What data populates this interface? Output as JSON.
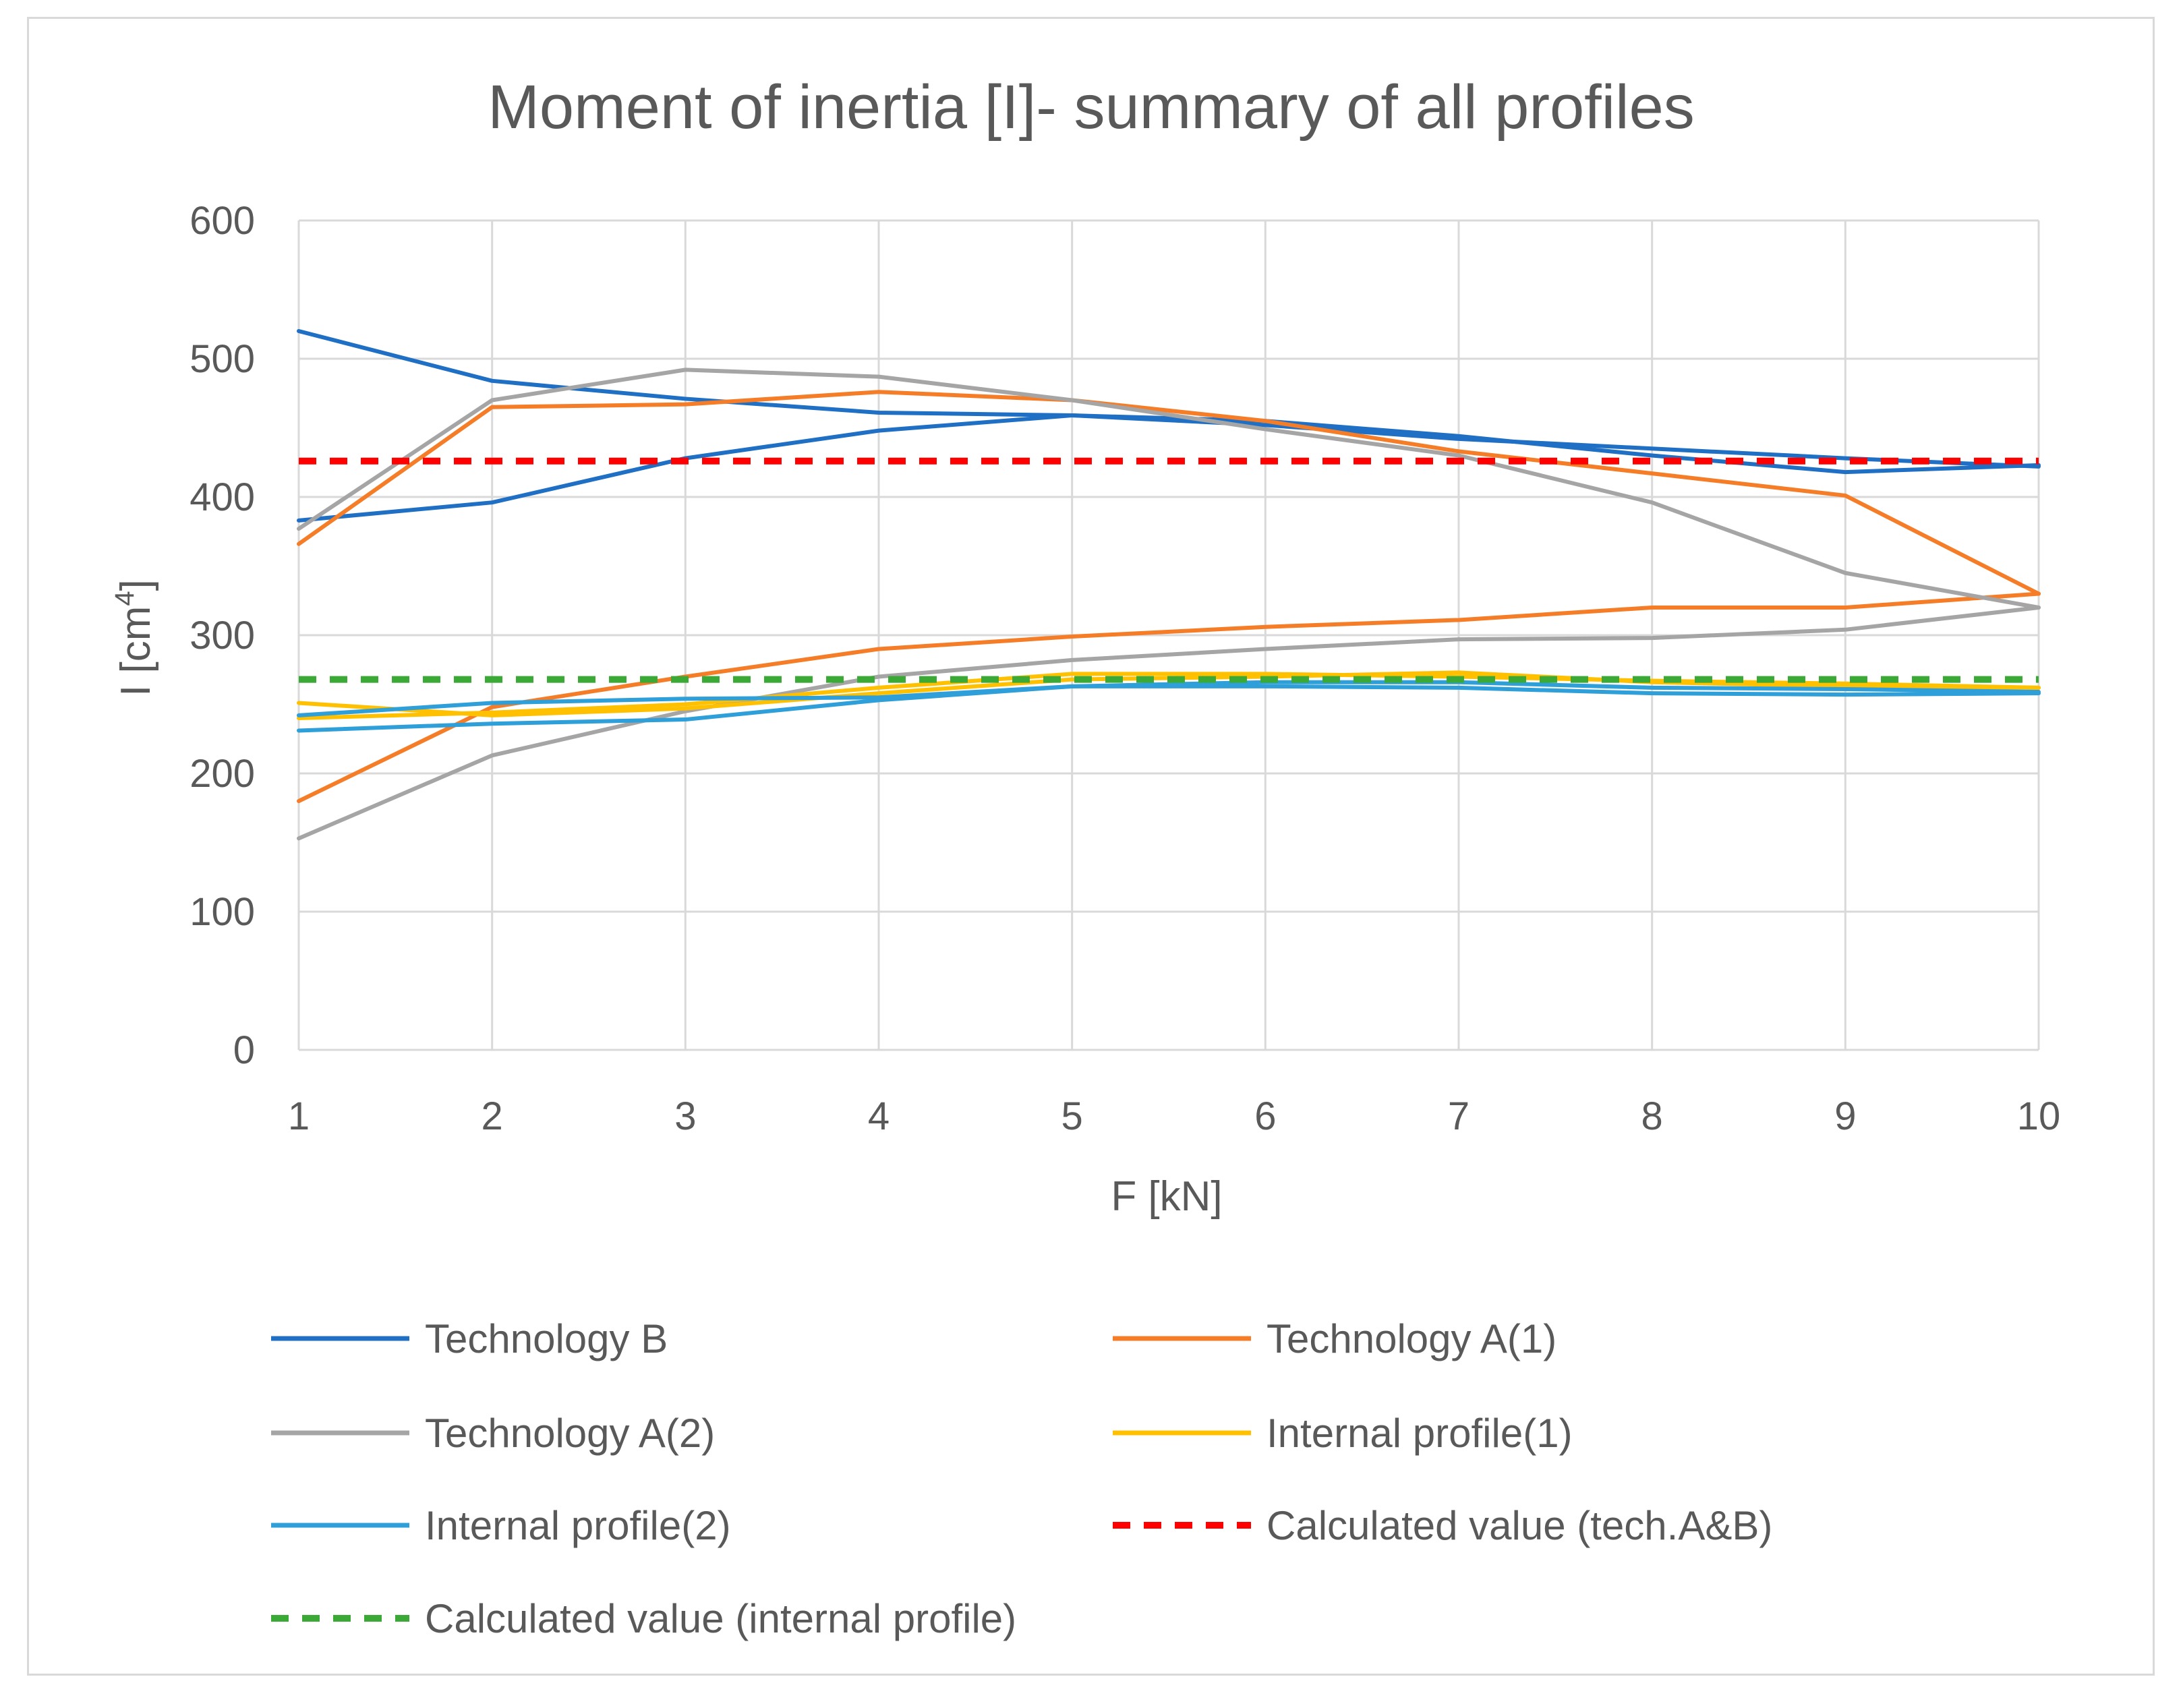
{
  "chart_data": {
    "type": "line",
    "title": "Moment of inertia [I]- summary of all profiles",
    "xlabel": "F [kN]",
    "ylabel_main": "I [cm",
    "ylabel_sup": "4",
    "ylabel_close": "]",
    "x": [
      1,
      2,
      3,
      4,
      5,
      6,
      7,
      8,
      9,
      10
    ],
    "ylim": [
      0,
      600
    ],
    "yticks": [
      0,
      100,
      200,
      300,
      400,
      500,
      600
    ],
    "grid": true,
    "legend_position": "bottom",
    "series": [
      {
        "name": "Technology B",
        "color": "#1f6fc5",
        "dash": "solid",
        "lines": [
          [
            520,
            484,
            471,
            461,
            459,
            452,
            442,
            435,
            428,
            422
          ],
          [
            383,
            396,
            428,
            448,
            459,
            455,
            444,
            430,
            418,
            423
          ]
        ]
      },
      {
        "name": "Technology A(1)",
        "color": "#f57d28",
        "dash": "solid",
        "lines": [
          [
            366,
            465,
            467,
            476,
            470,
            455,
            433,
            417,
            401,
            330
          ],
          [
            180,
            248,
            270,
            290,
            299,
            306,
            311,
            320,
            320,
            330
          ]
        ]
      },
      {
        "name": "Technology A(2)",
        "color": "#a5a5a5",
        "dash": "solid",
        "lines": [
          [
            377,
            470,
            492,
            487,
            470,
            449,
            430,
            396,
            345,
            320
          ],
          [
            153,
            213,
            245,
            270,
            282,
            290,
            297,
            298,
            304,
            320
          ]
        ]
      },
      {
        "name": "Internal profile(1)",
        "color": "#ffc000",
        "dash": "solid",
        "lines": [
          [
            251,
            242,
            247,
            258,
            268,
            270,
            273,
            266,
            263,
            262
          ],
          [
            240,
            244,
            250,
            262,
            272,
            272,
            270,
            267,
            265,
            262
          ]
        ]
      },
      {
        "name": "Internal profile(2)",
        "color": "#2e9fd9",
        "dash": "solid",
        "lines": [
          [
            231,
            236,
            239,
            253,
            263,
            263,
            262,
            258,
            257,
            258
          ],
          [
            242,
            251,
            254,
            255,
            263,
            266,
            266,
            262,
            261,
            259
          ]
        ]
      },
      {
        "name": "Calculated value (tech.A&B)",
        "color": "#ff0000",
        "dash": "dashed",
        "lines": [
          [
            426,
            426,
            426,
            426,
            426,
            426,
            426,
            426,
            426,
            426
          ]
        ]
      },
      {
        "name": "Calculated value (internal profile)",
        "color": "#3aa935",
        "dash": "dashed",
        "lines": [
          [
            268,
            268,
            268,
            268,
            268,
            268,
            268,
            268,
            268,
            268
          ]
        ]
      }
    ]
  }
}
